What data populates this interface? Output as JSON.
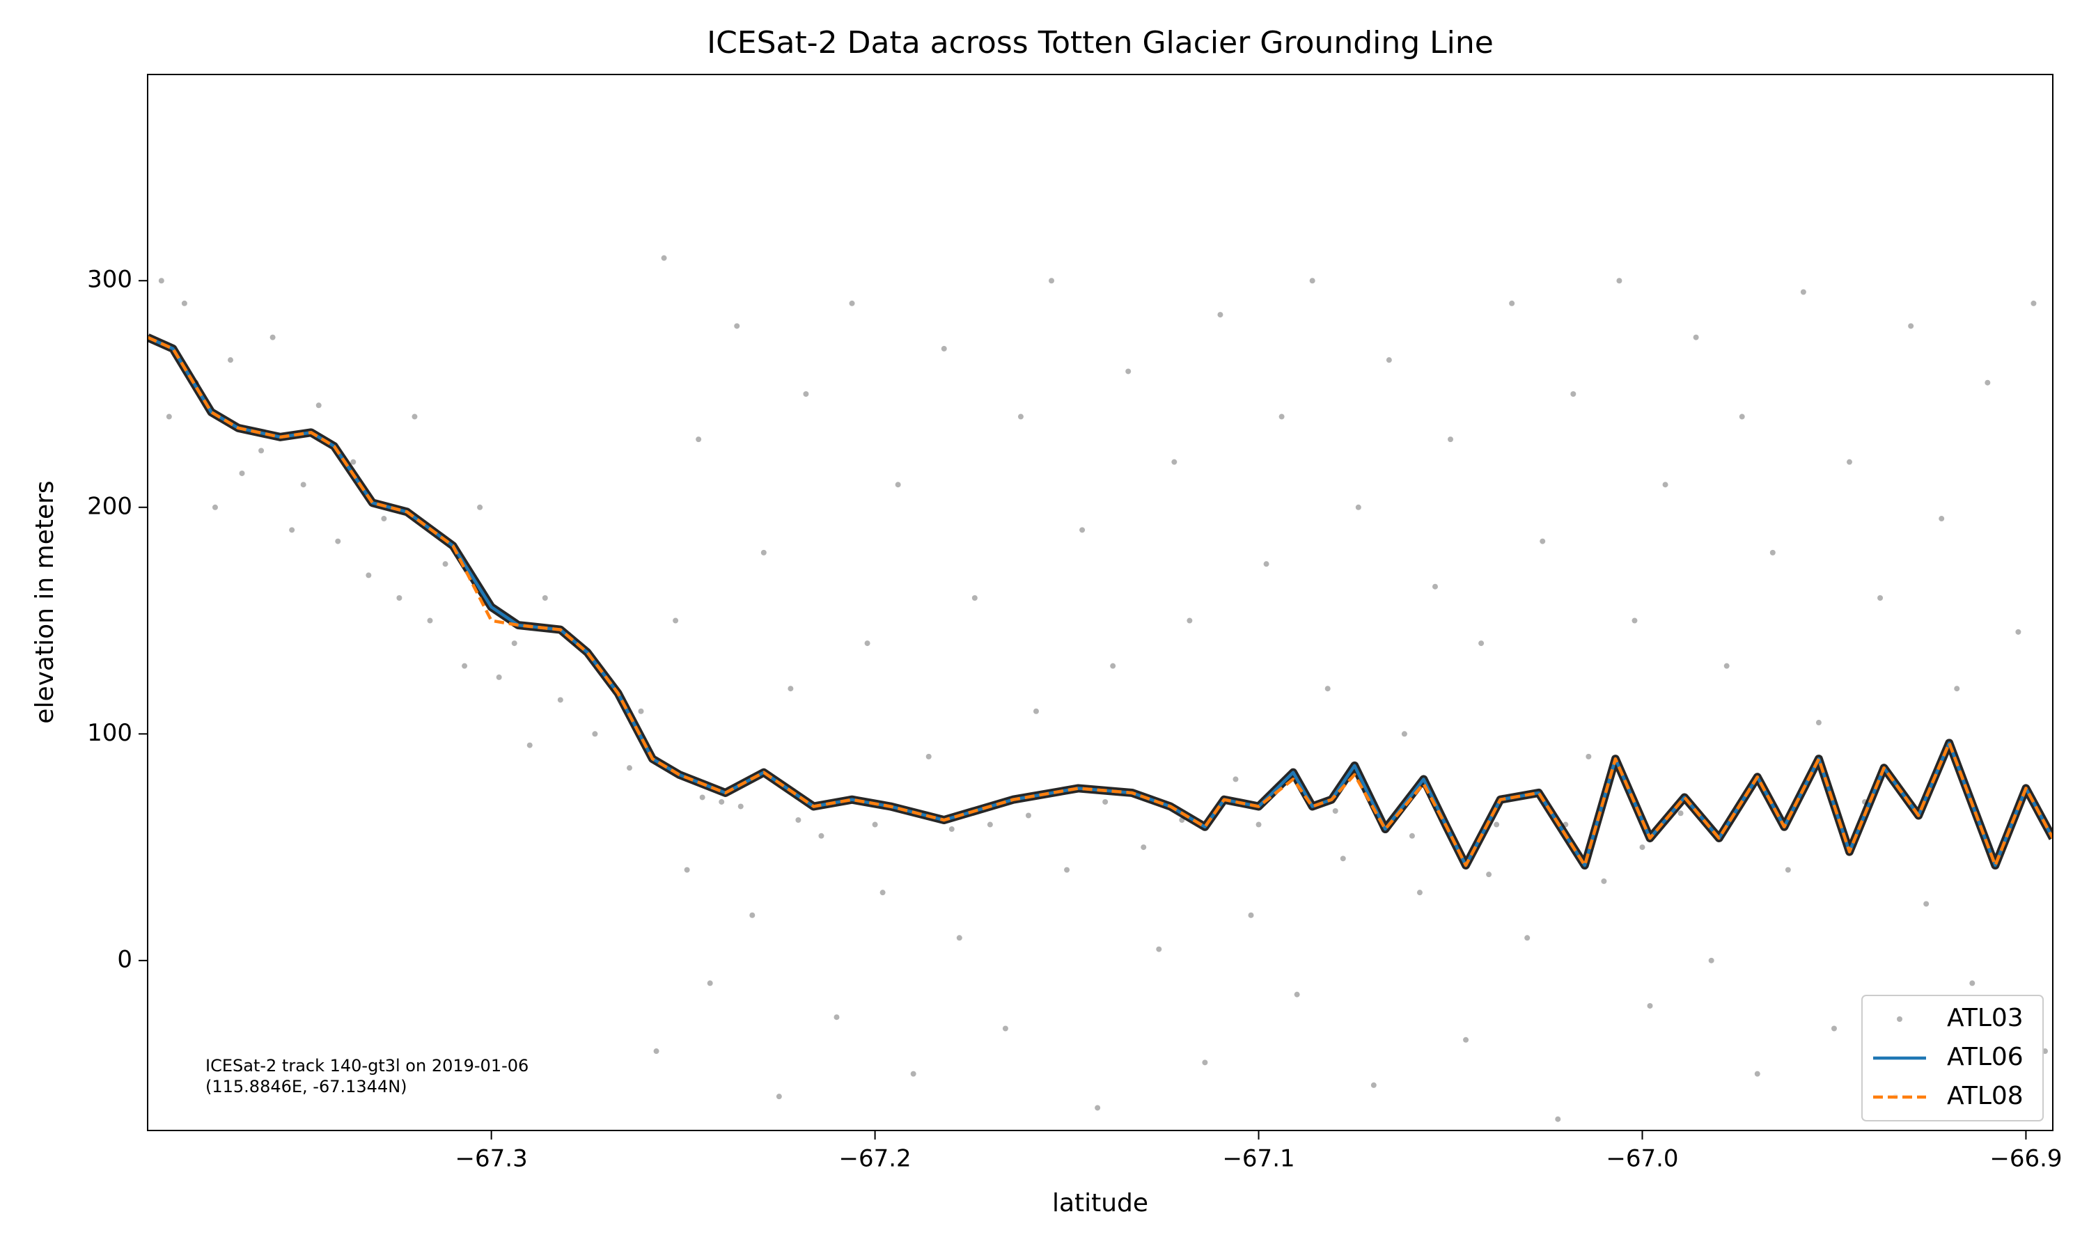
{
  "chart_data": {
    "type": "scatter",
    "title": "ICESat-2 Data across Totten Glacier Grounding Line",
    "x_label": "latitude",
    "y_label": "elevation in meters",
    "annotations": [
      "ICESat-2 track 140-gt3l on 2019-01-06",
      "(115.8846E, -67.1344N)"
    ],
    "xlim": [
      -67.3896,
      -66.893
    ],
    "ylim": [
      -75,
      391
    ],
    "xticks": [
      {
        "value": -67.3,
        "label": "−67.3"
      },
      {
        "value": -67.2,
        "label": "−67.2"
      },
      {
        "value": -67.1,
        "label": "−67.1"
      },
      {
        "value": -67.0,
        "label": "−67.0"
      },
      {
        "value": -66.9,
        "label": "−66.9"
      }
    ],
    "yticks": [
      0,
      100,
      200,
      300
    ],
    "legend": "lower right",
    "series": [
      {
        "name": "ATL03",
        "type": "scatter",
        "color": "#000000",
        "x": [
          -67.386,
          -67.384,
          -67.38,
          -67.377,
          -67.372,
          -67.368,
          -67.365,
          -67.36,
          -67.357,
          -67.352,
          -67.349,
          -67.345,
          -67.34,
          -67.336,
          -67.332,
          -67.328,
          -67.324,
          -67.32,
          -67.316,
          -67.312,
          -67.307,
          -67.303,
          -67.298,
          -67.294,
          -67.29,
          -67.286,
          -67.282,
          -67.278,
          -67.273,
          -67.268,
          -67.264,
          -67.261,
          -67.257,
          -67.255,
          -67.252,
          -67.249,
          -67.246,
          -67.243,
          -67.24,
          -67.236,
          -67.232,
          -67.229,
          -67.225,
          -67.222,
          -67.218,
          -67.214,
          -67.21,
          -67.206,
          -67.202,
          -67.198,
          -67.194,
          -67.19,
          -67.186,
          -67.182,
          -67.178,
          -67.174,
          -67.17,
          -67.166,
          -67.162,
          -67.158,
          -67.154,
          -67.15,
          -67.146,
          -67.142,
          -67.138,
          -67.134,
          -67.13,
          -67.126,
          -67.122,
          -67.118,
          -67.114,
          -67.11,
          -67.106,
          -67.102,
          -67.098,
          -67.094,
          -67.09,
          -67.086,
          -67.082,
          -67.078,
          -67.074,
          -67.07,
          -67.066,
          -67.062,
          -67.058,
          -67.054,
          -67.05,
          -67.046,
          -67.042,
          -67.038,
          -67.034,
          -67.03,
          -67.026,
          -67.022,
          -67.018,
          -67.014,
          -67.01,
          -67.006,
          -67.002,
          -66.998,
          -66.994,
          -66.99,
          -66.986,
          -66.982,
          -66.978,
          -66.974,
          -66.97,
          -66.966,
          -66.962,
          -66.958,
          -66.954,
          -66.95,
          -66.946,
          -66.942,
          -66.938,
          -66.934,
          -66.93,
          -66.926,
          -66.922,
          -66.918,
          -66.914,
          -66.91,
          -66.906,
          -66.902,
          -66.898,
          -66.895,
          -67.245,
          -67.235,
          -67.22,
          -67.2,
          -67.18,
          -67.16,
          -67.14,
          -67.12,
          -67.1,
          -67.08,
          -67.06,
          -67.04,
          -67.02,
          -67.0
        ],
        "values": [
          300,
          240,
          290,
          255,
          200,
          265,
          215,
          225,
          275,
          190,
          210,
          245,
          185,
          220,
          170,
          195,
          160,
          240,
          150,
          175,
          130,
          200,
          125,
          140,
          95,
          160,
          115,
          140,
          100,
          120,
          85,
          110,
          -40,
          310,
          150,
          40,
          230,
          -10,
          70,
          280,
          20,
          180,
          -60,
          120,
          250,
          55,
          -25,
          290,
          140,
          30,
          210,
          -50,
          90,
          270,
          10,
          160,
          60,
          -30,
          240,
          110,
          300,
          40,
          190,
          -65,
          130,
          260,
          50,
          5,
          220,
          150,
          -45,
          285,
          80,
          20,
          175,
          240,
          -15,
          300,
          120,
          45,
          200,
          -55,
          265,
          100,
          30,
          165,
          230,
          -35,
          140,
          60,
          290,
          10,
          185,
          -70,
          250,
          90,
          35,
          300,
          150,
          -20,
          210,
          65,
          275,
          0,
          130,
          240,
          -50,
          180,
          40,
          295,
          105,
          -30,
          220,
          70,
          160,
          -60,
          280,
          25,
          195,
          120,
          -10,
          255,
          50,
          145,
          290,
          -40,
          72,
          68,
          62,
          60,
          58,
          64,
          70,
          62,
          60,
          66,
          55,
          38,
          60,
          50
        ]
      },
      {
        "name": "ATL06",
        "type": "line",
        "color": "#1f77b4",
        "x": [
          -67.3896,
          -67.383,
          -67.373,
          -67.366,
          -67.355,
          -67.347,
          -67.341,
          -67.331,
          -67.322,
          -67.31,
          -67.3,
          -67.293,
          -67.282,
          -67.275,
          -67.267,
          -67.258,
          -67.251,
          -67.239,
          -67.229,
          -67.216,
          -67.206,
          -67.196,
          -67.182,
          -67.164,
          -67.147,
          -67.133,
          -67.123,
          -67.114,
          -67.109,
          -67.1,
          -67.091,
          -67.086,
          -67.081,
          -67.075,
          -67.067,
          -67.057,
          -67.051,
          -67.046,
          -67.037,
          -67.027,
          -67.015,
          -67.007,
          -66.998,
          -66.989,
          -66.98,
          -66.97,
          -66.963,
          -66.954,
          -66.946,
          -66.937,
          -66.928,
          -66.92,
          -66.908,
          -66.9,
          -66.893
        ],
        "values": [
          275,
          270,
          242,
          235,
          231,
          233,
          227,
          202,
          198,
          183,
          156,
          148,
          146,
          136,
          118,
          89,
          82,
          74,
          83,
          68,
          71,
          68,
          62,
          71,
          76,
          74,
          68,
          59,
          71,
          68,
          83,
          68,
          71,
          86,
          58,
          80,
          59,
          42,
          71,
          74,
          42,
          89,
          54,
          72,
          54,
          81,
          59,
          89,
          48,
          85,
          64,
          96,
          42,
          76,
          54
        ]
      },
      {
        "name": "ATL08",
        "type": "line",
        "color": "#ff7f0e",
        "linestyle": "dashed",
        "x": [
          -67.3896,
          -67.383,
          -67.373,
          -67.366,
          -67.355,
          -67.347,
          -67.341,
          -67.331,
          -67.322,
          -67.31,
          -67.3,
          -67.293,
          -67.282,
          -67.275,
          -67.267,
          -67.258,
          -67.251,
          -67.239,
          -67.229,
          -67.216,
          -67.206,
          -67.196,
          -67.182,
          -67.164,
          -67.147,
          -67.133,
          -67.123,
          -67.114,
          -67.109,
          -67.1,
          -67.091,
          -67.086,
          -67.081,
          -67.075,
          -67.067,
          -67.057,
          -67.051,
          -67.046,
          -67.037,
          -67.027,
          -67.015,
          -67.007,
          -66.998,
          -66.989,
          -66.98,
          -66.97,
          -66.963,
          -66.954,
          -66.946,
          -66.937,
          -66.928,
          -66.92,
          -66.908,
          -66.9,
          -66.893
        ],
        "values": [
          275,
          270,
          242,
          235,
          231,
          233,
          227,
          202,
          198,
          183,
          150,
          148,
          146,
          136,
          118,
          89,
          82,
          74,
          83,
          68,
          71,
          68,
          62,
          71,
          76,
          74,
          68,
          59,
          71,
          68,
          80,
          68,
          71,
          82,
          58,
          78,
          59,
          42,
          71,
          74,
          42,
          89,
          54,
          72,
          54,
          81,
          59,
          89,
          48,
          85,
          64,
          96,
          42,
          76,
          54
        ]
      }
    ]
  }
}
